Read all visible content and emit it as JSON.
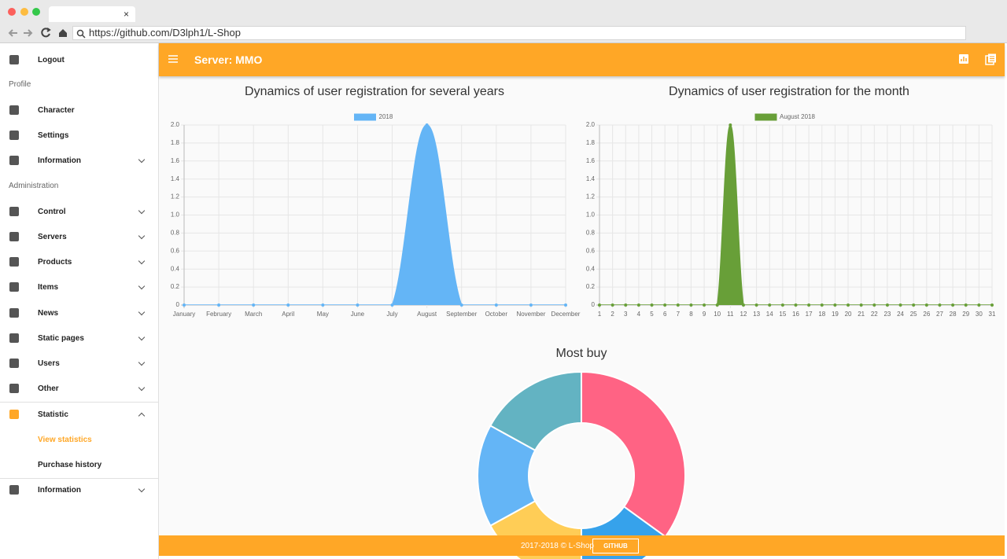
{
  "browser": {
    "tab_close": "×",
    "url": "https://github.com/D3lph1/L-Shop"
  },
  "sidebar": {
    "logout": "Logout",
    "profile_heading": "Profile",
    "profile": [
      "Character",
      "Settings",
      "Information"
    ],
    "admin_heading": "Administration",
    "admin": [
      "Control",
      "Servers",
      "Products",
      "Items",
      "News",
      "Static pages",
      "Users",
      "Other",
      "Statistic"
    ],
    "statistic_submenu": [
      "View statistics",
      "Purchase history"
    ],
    "bottom": [
      "Information"
    ]
  },
  "header": {
    "title": "Server: MMO"
  },
  "footer": {
    "copyright": "2017-2018 © L-Shop",
    "button": "GITHUB"
  },
  "chart_data": [
    {
      "type": "area",
      "title": "Dynamics of user registration for several years",
      "categories": [
        "January",
        "February",
        "March",
        "April",
        "May",
        "June",
        "July",
        "August",
        "September",
        "October",
        "November",
        "December"
      ],
      "series": [
        {
          "name": "2018",
          "color": "#64b5f6",
          "values": [
            0,
            0,
            0,
            0,
            0,
            0,
            0,
            2,
            0,
            0,
            0,
            0
          ]
        }
      ],
      "ylim": [
        0,
        2
      ],
      "yticks": [
        0,
        0.2,
        0.4,
        0.6,
        0.8,
        {
          "value": 1,
          "label": "1.0"
        },
        1.2,
        1.4,
        1.6,
        1.8,
        {
          "value": 2,
          "label": "2.0"
        }
      ],
      "grid": true,
      "legend": "top"
    },
    {
      "type": "area",
      "title": "Dynamics of user registration for the month",
      "categories": [
        1,
        2,
        3,
        4,
        5,
        6,
        7,
        8,
        9,
        10,
        11,
        12,
        13,
        14,
        15,
        16,
        17,
        18,
        19,
        20,
        21,
        22,
        23,
        24,
        25,
        26,
        27,
        28,
        29,
        30,
        31
      ],
      "series": [
        {
          "name": "August 2018",
          "color": "#689f38",
          "values": [
            0,
            0,
            0,
            0,
            0,
            0,
            0,
            0,
            0,
            0,
            2,
            0,
            0,
            0,
            0,
            0,
            0,
            0,
            0,
            0,
            0,
            0,
            0,
            0,
            0,
            0,
            0,
            0,
            0,
            0,
            0
          ]
        }
      ],
      "ylim": [
        0,
        2
      ],
      "yticks": [
        0,
        0.2,
        0.4,
        0.6,
        0.8,
        {
          "value": 1,
          "label": "1.0"
        },
        1.2,
        1.4,
        1.6,
        1.8,
        {
          "value": 2,
          "label": "2.0"
        }
      ],
      "grid": true,
      "legend": "top"
    },
    {
      "type": "doughnut",
      "title": "Most buy",
      "values": [
        35,
        15,
        17,
        16,
        17
      ],
      "colors": [
        "#ff6384",
        "#36a2eb",
        "#ffcd56",
        "#64b5f6",
        "#63b3c2"
      ]
    }
  ]
}
